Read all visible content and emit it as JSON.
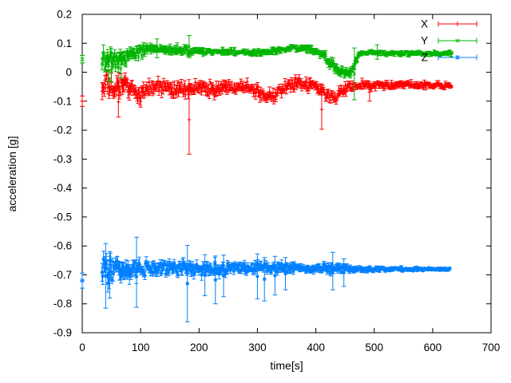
{
  "figure": {
    "background": "#ffffff",
    "axis_color": "#000000",
    "text_color": "#000000"
  },
  "chart_data": {
    "type": "scatter",
    "style": "points-with-errorbars",
    "title": "",
    "xlabel": "time[s]",
    "ylabel": "acceleration [g]",
    "xlim": [
      0,
      700
    ],
    "ylim": [
      -0.9,
      0.2
    ],
    "xticks": [
      "0",
      "100",
      "200",
      "300",
      "400",
      "500",
      "600",
      "700"
    ],
    "yticks": [
      "0.2",
      "0.1",
      "0",
      "-0.1",
      "-0.2",
      "-0.3",
      "-0.4",
      "-0.5",
      "-0.6",
      "-0.7",
      "-0.8",
      "-0.9"
    ],
    "grid": false,
    "legend": {
      "position": "top-right-inside",
      "entries": [
        "X",
        "Y",
        "Z"
      ]
    },
    "series": [
      {
        "name": "X",
        "color": "#ff0000",
        "marker": "plus",
        "initial_point": {
          "t": 0,
          "value": -0.1,
          "err": 0.018
        },
        "band": {
          "t_start": 34,
          "t_end": 632,
          "envelope_t_center_halfwidth": [
            [
              34,
              -0.055,
              0.06
            ],
            [
              45,
              -0.045,
              0.058
            ],
            [
              55,
              -0.07,
              0.056
            ],
            [
              65,
              -0.05,
              0.055
            ],
            [
              75,
              -0.04,
              0.046
            ],
            [
              85,
              -0.06,
              0.05
            ],
            [
              95,
              -0.08,
              0.045
            ],
            [
              110,
              -0.06,
              0.038
            ],
            [
              125,
              -0.055,
              0.032
            ],
            [
              140,
              -0.05,
              0.036
            ],
            [
              155,
              -0.065,
              0.04
            ],
            [
              170,
              -0.055,
              0.036
            ],
            [
              183,
              -0.06,
              0.04
            ],
            [
              195,
              -0.055,
              0.032
            ],
            [
              210,
              -0.05,
              0.034
            ],
            [
              225,
              -0.062,
              0.04
            ],
            [
              240,
              -0.055,
              0.036
            ],
            [
              255,
              -0.046,
              0.03
            ],
            [
              270,
              -0.05,
              0.03
            ],
            [
              285,
              -0.046,
              0.03
            ],
            [
              300,
              -0.065,
              0.035
            ],
            [
              310,
              -0.085,
              0.03
            ],
            [
              318,
              -0.07,
              0.032
            ],
            [
              328,
              -0.082,
              0.03
            ],
            [
              340,
              -0.06,
              0.03
            ],
            [
              355,
              -0.046,
              0.03
            ],
            [
              370,
              -0.04,
              0.03
            ],
            [
              385,
              -0.045,
              0.028
            ],
            [
              400,
              -0.05,
              0.028
            ],
            [
              413,
              -0.07,
              0.03
            ],
            [
              428,
              -0.09,
              0.028
            ],
            [
              440,
              -0.075,
              0.03
            ],
            [
              455,
              -0.052,
              0.026
            ],
            [
              470,
              -0.046,
              0.024
            ],
            [
              485,
              -0.043,
              0.022
            ],
            [
              500,
              -0.045,
              0.02
            ],
            [
              530,
              -0.046,
              0.018
            ],
            [
              560,
              -0.044,
              0.017
            ],
            [
              600,
              -0.045,
              0.016
            ],
            [
              632,
              -0.045,
              0.016
            ]
          ]
        },
        "outlier_errorbars_t_lo_hi": [
          [
            62,
            -0.155,
            -0.05
          ],
          [
            183,
            -0.283,
            -0.045
          ],
          [
            410,
            -0.197,
            -0.06
          ],
          [
            492,
            -0.1,
            -0.038
          ]
        ]
      },
      {
        "name": "Y",
        "color": "#00b400",
        "marker": "cross",
        "initial_point": {
          "t": 0,
          "value": 0.045,
          "err": 0.013
        },
        "band": {
          "t_start": 34,
          "t_end": 634,
          "envelope_t_center_halfwidth": [
            [
              34,
              0.05,
              0.05
            ],
            [
              45,
              0.045,
              0.052
            ],
            [
              55,
              0.04,
              0.05
            ],
            [
              62,
              0.035,
              0.05
            ],
            [
              70,
              0.05,
              0.042
            ],
            [
              80,
              0.06,
              0.036
            ],
            [
              90,
              0.065,
              0.032
            ],
            [
              105,
              0.072,
              0.028
            ],
            [
              120,
              0.078,
              0.024
            ],
            [
              135,
              0.08,
              0.022
            ],
            [
              150,
              0.075,
              0.02
            ],
            [
              165,
              0.078,
              0.022
            ],
            [
              183,
              0.072,
              0.022
            ],
            [
              200,
              0.074,
              0.018
            ],
            [
              220,
              0.07,
              0.016
            ],
            [
              240,
              0.071,
              0.015
            ],
            [
              260,
              0.072,
              0.014
            ],
            [
              280,
              0.068,
              0.014
            ],
            [
              300,
              0.066,
              0.016
            ],
            [
              315,
              0.068,
              0.016
            ],
            [
              330,
              0.075,
              0.016
            ],
            [
              345,
              0.08,
              0.015
            ],
            [
              360,
              0.084,
              0.014
            ],
            [
              375,
              0.082,
              0.014
            ],
            [
              390,
              0.078,
              0.014
            ],
            [
              405,
              0.07,
              0.018
            ],
            [
              418,
              0.045,
              0.025
            ],
            [
              430,
              0.02,
              0.028
            ],
            [
              442,
              0.002,
              0.022
            ],
            [
              455,
              -0.003,
              0.02
            ],
            [
              462,
              0.005,
              0.022
            ],
            [
              468,
              0.04,
              0.025
            ],
            [
              475,
              0.065,
              0.016
            ],
            [
              490,
              0.069,
              0.013
            ],
            [
              510,
              0.067,
              0.012
            ],
            [
              540,
              0.066,
              0.012
            ],
            [
              570,
              0.065,
              0.011
            ],
            [
              600,
              0.065,
              0.011
            ],
            [
              634,
              0.065,
              0.011
            ]
          ]
        },
        "outlier_errorbars_t_lo_hi": [
          [
            45,
            -0.03,
            0.04
          ],
          [
            50,
            -0.035,
            0.045
          ],
          [
            66,
            -0.02,
            0.045
          ],
          [
            128,
            0.05,
            0.115
          ],
          [
            183,
            0.05,
            0.127
          ],
          [
            466,
            -0.095,
            0.084
          ],
          [
            505,
            0.045,
            0.095
          ]
        ]
      },
      {
        "name": "Z",
        "color": "#0080ff",
        "marker": "star",
        "initial_point": {
          "t": 0,
          "value": -0.72,
          "err": 0.026
        },
        "band": {
          "t_start": 34,
          "t_end": 630,
          "envelope_t_center_halfwidth": [
            [
              34,
              -0.687,
              0.062
            ],
            [
              45,
              -0.69,
              0.065
            ],
            [
              60,
              -0.686,
              0.06
            ],
            [
              75,
              -0.682,
              0.055
            ],
            [
              90,
              -0.686,
              0.05
            ],
            [
              105,
              -0.681,
              0.042
            ],
            [
              120,
              -0.68,
              0.036
            ],
            [
              140,
              -0.677,
              0.032
            ],
            [
              160,
              -0.679,
              0.03
            ],
            [
              180,
              -0.68,
              0.038
            ],
            [
              200,
              -0.679,
              0.036
            ],
            [
              215,
              -0.68,
              0.038
            ],
            [
              230,
              -0.679,
              0.034
            ],
            [
              245,
              -0.678,
              0.03
            ],
            [
              260,
              -0.676,
              0.026
            ],
            [
              280,
              -0.676,
              0.024
            ],
            [
              300,
              -0.676,
              0.028
            ],
            [
              315,
              -0.677,
              0.027
            ],
            [
              330,
              -0.676,
              0.026
            ],
            [
              345,
              -0.675,
              0.026
            ],
            [
              360,
              -0.676,
              0.023
            ],
            [
              380,
              -0.676,
              0.022
            ],
            [
              400,
              -0.678,
              0.021
            ],
            [
              415,
              -0.678,
              0.024
            ],
            [
              429,
              -0.676,
              0.031
            ],
            [
              442,
              -0.678,
              0.021
            ],
            [
              460,
              -0.679,
              0.018
            ],
            [
              480,
              -0.68,
              0.015
            ],
            [
              500,
              -0.681,
              0.013
            ],
            [
              525,
              -0.68,
              0.011
            ],
            [
              555,
              -0.68,
              0.01
            ],
            [
              590,
              -0.68,
              0.009
            ],
            [
              630,
              -0.68,
              0.009
            ]
          ]
        },
        "outlier_errorbars_t_lo_hi": [
          [
            40,
            -0.815,
            -0.592
          ],
          [
            47,
            -0.78,
            -0.62
          ],
          [
            93,
            -0.812,
            -0.57
          ],
          [
            180,
            -0.862,
            -0.598
          ],
          [
            210,
            -0.772,
            -0.63
          ],
          [
            228,
            -0.8,
            -0.635
          ],
          [
            242,
            -0.775,
            -0.632
          ],
          [
            300,
            -0.783,
            -0.628
          ],
          [
            312,
            -0.79,
            -0.64
          ],
          [
            330,
            -0.77,
            -0.636
          ],
          [
            348,
            -0.752,
            -0.64
          ],
          [
            429,
            -0.752,
            -0.622
          ],
          [
            448,
            -0.74,
            -0.645
          ]
        ]
      }
    ]
  }
}
